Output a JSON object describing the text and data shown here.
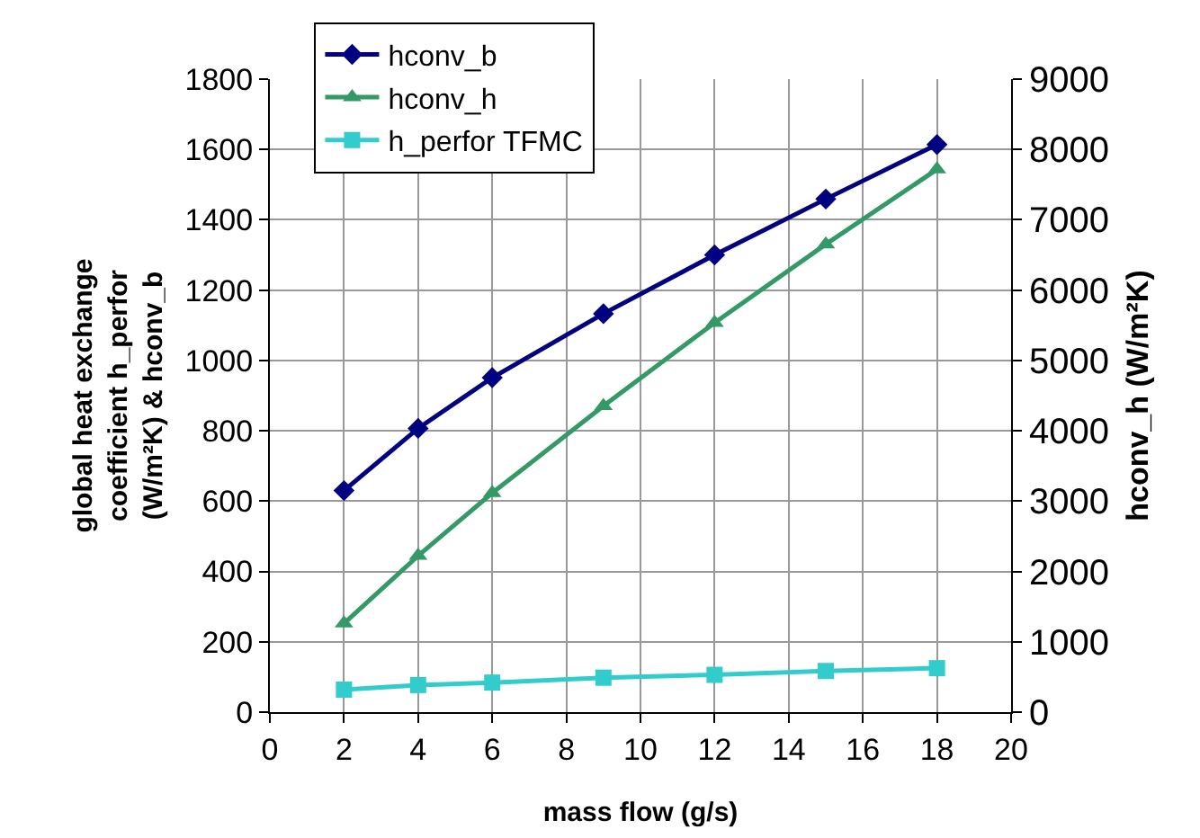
{
  "chart_data": {
    "type": "line",
    "xlabel": "mass flow (g/s)",
    "ylabel": "global heat exchange coefficient h_perfor (W/m²K) & hconv_b",
    "y2label": "hconv_h (W/m²K)",
    "x": [
      2,
      4,
      6,
      9,
      12,
      15,
      18
    ],
    "series": [
      {
        "name": "hconv_b",
        "color": "#000080",
        "marker": "diamond",
        "values": [
          630,
          807,
          951,
          1133,
          1300,
          1459,
          1614
        ]
      },
      {
        "name": "hconv_h",
        "color": "#339966",
        "marker": "triangle",
        "axis": "y2",
        "values": [
          1262,
          2223,
          3116,
          4352,
          5536,
          6652,
          7717
        ]
      },
      {
        "name": "h_perfor TFMC",
        "color": "#33cccc",
        "marker": "square",
        "values": [
          64,
          77,
          84,
          98,
          106,
          117,
          125
        ]
      }
    ],
    "xlim": [
      0,
      20
    ],
    "xticks": [
      0,
      2,
      4,
      6,
      8,
      10,
      12,
      14,
      16,
      18,
      20
    ],
    "ylim": [
      0,
      1800
    ],
    "yticks": [
      0,
      200,
      400,
      600,
      800,
      1000,
      1200,
      1400,
      1600,
      1800
    ],
    "y2lim": [
      0,
      9000
    ],
    "y2ticks": [
      0,
      1000,
      2000,
      3000,
      4000,
      5000,
      6000,
      7000,
      8000,
      9000
    ],
    "grid": true,
    "legend": "top left",
    "line_style": "solid"
  }
}
